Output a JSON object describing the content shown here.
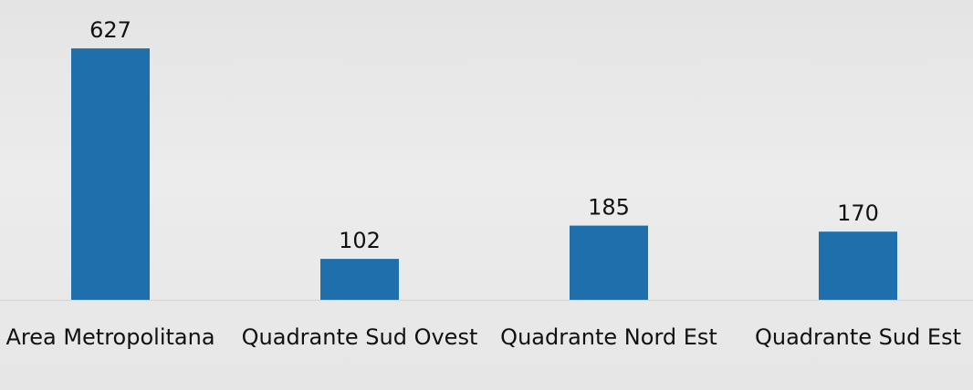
{
  "chart_data": {
    "type": "bar",
    "categories": [
      "Area Metropolitana",
      "Quadrante Sud Ovest",
      "Quadrante Nord Est",
      "Quadrante Sud Est"
    ],
    "values": [
      627,
      102,
      185,
      170
    ],
    "color": "#1f6fad"
  }
}
